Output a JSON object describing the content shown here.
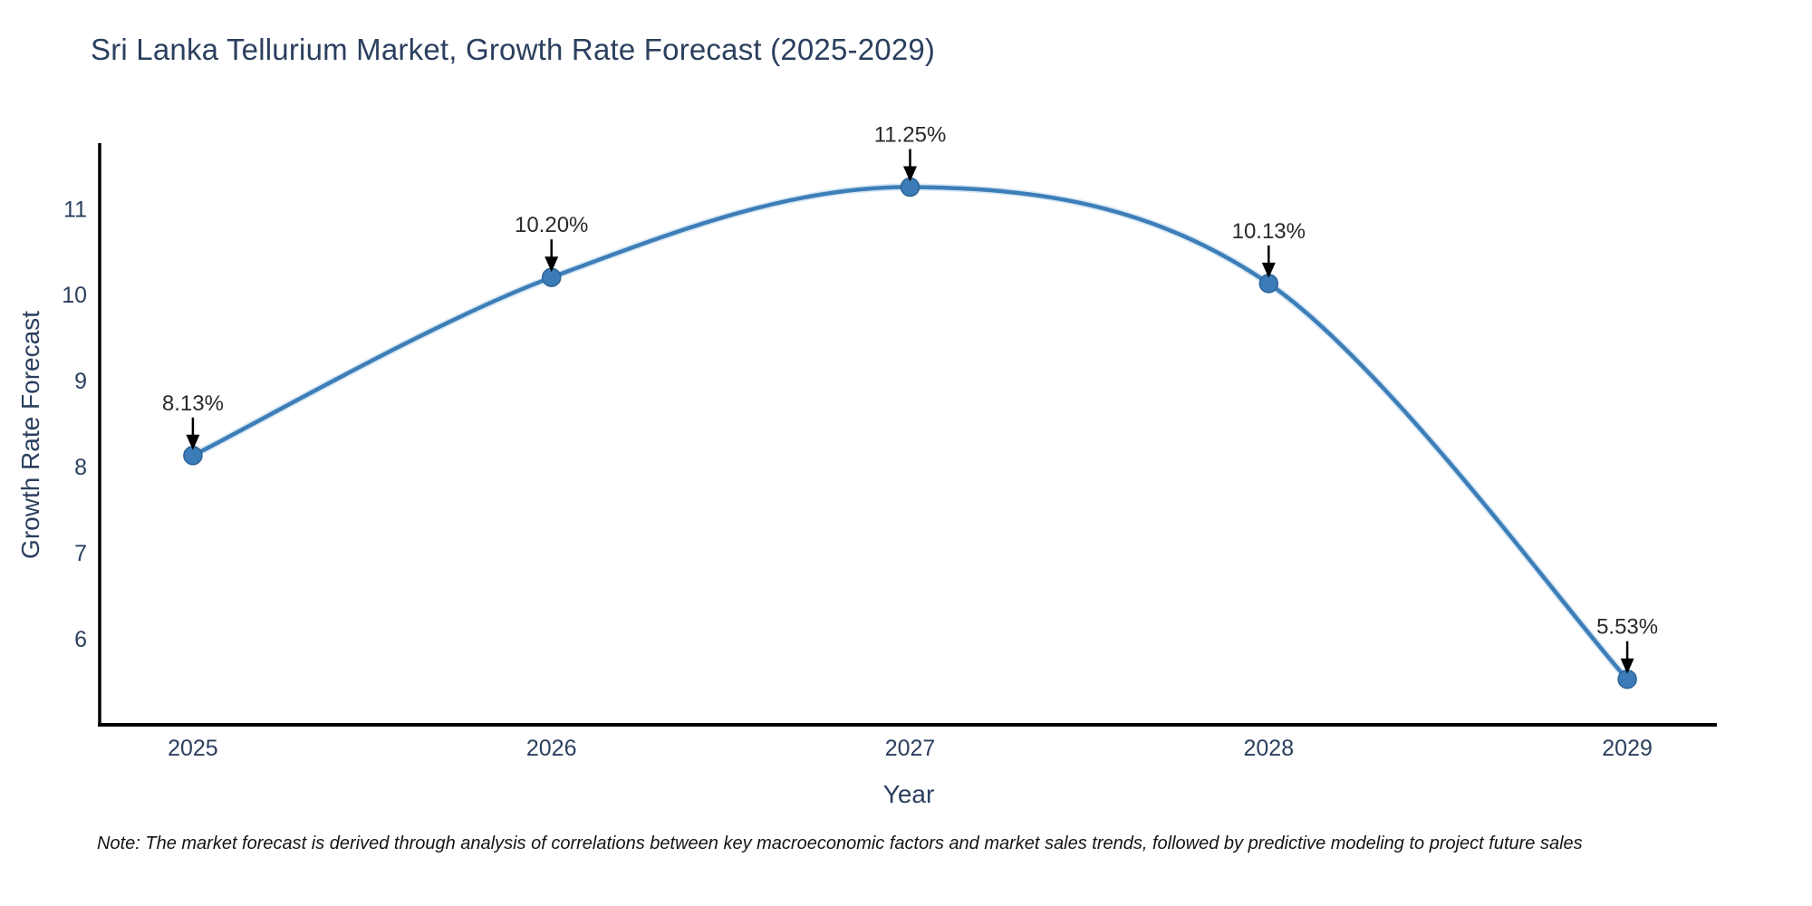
{
  "page": {
    "background": "#ffffff"
  },
  "chart_data": {
    "type": "line",
    "title": "Sri Lanka Tellurium Market, Growth Rate Forecast (2025-2029)",
    "xlabel": "Year",
    "ylabel": "Growth Rate Forecast",
    "x": [
      2025,
      2026,
      2027,
      2028,
      2029
    ],
    "values": [
      8.13,
      10.2,
      11.25,
      10.13,
      5.53
    ],
    "point_labels": [
      "8.13%",
      "10.20%",
      "11.25%",
      "10.13%",
      "5.53%"
    ],
    "yticks": [
      6,
      7,
      8,
      9,
      10,
      11
    ],
    "xticks": [
      "2025",
      "2026",
      "2027",
      "2028",
      "2029"
    ],
    "ylim": [
      5.0,
      11.74
    ],
    "xlim": [
      2024.74,
      2029.25
    ],
    "grid": false,
    "legend": "none",
    "line_shape": "spline",
    "line_color": "#3d7eb8",
    "line_halo_color": "#d8e8f5",
    "marker_color": "#3b7cb8",
    "marker_edge_color": "#2d6396",
    "annotation_color": "#2a2a2a",
    "arrow_color": "#000000",
    "axis_color": "#000000",
    "tick_color": "#2b3f5e",
    "note": "Note: The market forecast is derived through analysis of correlations between key macroeconomic factors and market sales trends, followed by predictive modeling to project future sales"
  }
}
